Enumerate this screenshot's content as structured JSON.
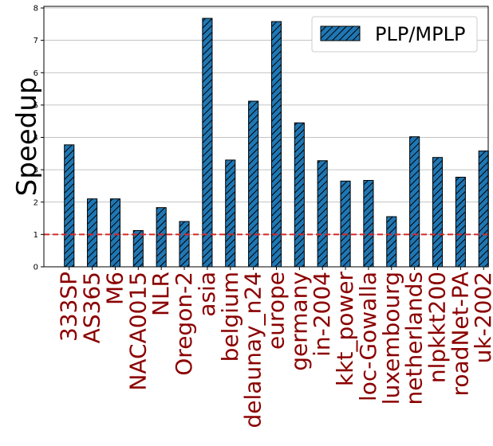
{
  "chart_data": {
    "type": "bar",
    "title": "",
    "xlabel": "",
    "ylabel": "Speedup",
    "ylim": [
      0,
      8.05
    ],
    "yticks": [
      "0",
      "1",
      "2",
      "3",
      "4",
      "5",
      "6",
      "7",
      "8"
    ],
    "grid": "horizontal",
    "legend_position": "top-right",
    "categories": [
      "333SP",
      "AS365",
      "M6",
      "NACA0015",
      "NLR",
      "Oregon-2",
      "asia",
      "belgium",
      "delaunay_n24",
      "europe",
      "germany",
      "in-2004",
      "kkt_power",
      "loc-Gowalla",
      "luxembourg",
      "netherlands",
      "nlpkkt200",
      "roadNet-PA",
      "uk-2002"
    ],
    "series": [
      {
        "name": "PLP/MPLP",
        "values": [
          3.77,
          2.1,
          2.1,
          1.12,
          1.83,
          1.4,
          7.68,
          3.3,
          5.12,
          7.58,
          4.45,
          3.28,
          2.65,
          2.67,
          1.55,
          4.02,
          3.38,
          2.77,
          3.58
        ],
        "color": "#1f77b4",
        "hatch": "diagonal"
      }
    ],
    "reference_line": {
      "value": 1,
      "color": "#d62728",
      "style": "dashed"
    },
    "tick_label_color": "#8b0000"
  }
}
